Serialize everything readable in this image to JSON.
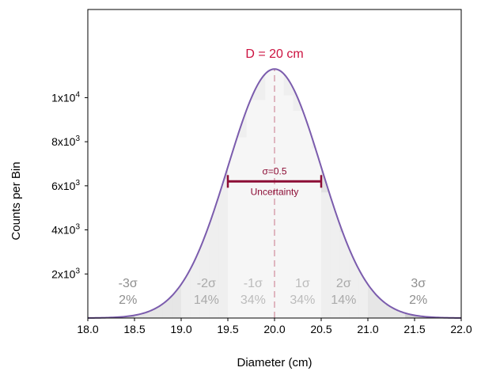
{
  "chart_data": {
    "type": "bar",
    "xlabel": "Diameter (cm)",
    "ylabel": "Counts per Bin",
    "xlim": [
      18.0,
      22.0
    ],
    "ylim": [
      0,
      14000
    ],
    "x_ticks": [
      "18.0",
      "18.5",
      "19.0",
      "19.5",
      "20.0",
      "20.5",
      "21.0",
      "21.5",
      "22.0"
    ],
    "y_ticks": [
      {
        "value": 2000,
        "base": "2x10",
        "exp": "3"
      },
      {
        "value": 4000,
        "base": "4x10",
        "exp": "3"
      },
      {
        "value": 6000,
        "base": "6x10",
        "exp": "3"
      },
      {
        "value": 8000,
        "base": "8x10",
        "exp": "3"
      },
      {
        "value": 10000,
        "base": "1x10",
        "exp": "4"
      }
    ],
    "histogram": {
      "bin_width": 0.1,
      "bins": [
        {
          "x": 18.55,
          "y": 300
        },
        {
          "x": 18.65,
          "y": 550
        },
        {
          "x": 18.75,
          "y": 600
        },
        {
          "x": 18.85,
          "y": 1050
        },
        {
          "x": 18.95,
          "y": 1780
        },
        {
          "x": 19.05,
          "y": 2950
        },
        {
          "x": 19.15,
          "y": 4700
        },
        {
          "x": 19.25,
          "y": 4700
        },
        {
          "x": 19.35,
          "y": 6300
        },
        {
          "x": 19.45,
          "y": 6300
        },
        {
          "x": 19.55,
          "y": 8200
        },
        {
          "x": 19.65,
          "y": 8200
        },
        {
          "x": 19.75,
          "y": 9900
        },
        {
          "x": 19.85,
          "y": 9900
        },
        {
          "x": 19.95,
          "y": 11300
        },
        {
          "x": 20.05,
          "y": 11300
        },
        {
          "x": 20.15,
          "y": 10100
        },
        {
          "x": 20.25,
          "y": 9400
        },
        {
          "x": 20.35,
          "y": 9400
        },
        {
          "x": 20.45,
          "y": 7700
        },
        {
          "x": 20.55,
          "y": 5700
        },
        {
          "x": 20.65,
          "y": 5700
        },
        {
          "x": 20.75,
          "y": 3900
        },
        {
          "x": 20.85,
          "y": 3900
        },
        {
          "x": 20.95,
          "y": 2300
        },
        {
          "x": 21.05,
          "y": 2300
        },
        {
          "x": 21.15,
          "y": 1400
        },
        {
          "x": 21.25,
          "y": 550
        },
        {
          "x": 21.35,
          "y": 350
        }
      ]
    },
    "curve": {
      "mean": 20.0,
      "sigma": 0.5,
      "peak": 11300,
      "color": "#7b5cad"
    },
    "shading_colors": {
      "inner": "#efefef",
      "middle": "#e2e2e2",
      "outer": "#d2d2d2"
    },
    "mean_line": {
      "x": 20.0,
      "color": "#c8758a"
    },
    "title_annotation": {
      "text": "D = 20 cm",
      "color": "#cc1240"
    },
    "uncertainty": {
      "x_start": 19.5,
      "x_end": 20.5,
      "y": 6200,
      "top_text": "σ=0.5",
      "bottom_text": "Uncertainty",
      "color": "#8c0d35"
    },
    "bands": [
      {
        "sigma": "-3σ",
        "pct": "2%",
        "x": 18.43,
        "color": "#8f8f8f"
      },
      {
        "sigma": "-2σ",
        "pct": "14%",
        "x": 19.27,
        "color": "#aaaaaa"
      },
      {
        "sigma": "-1σ",
        "pct": "34%",
        "x": 19.77,
        "color": "#bcbcbc"
      },
      {
        "sigma": "1σ",
        "pct": "34%",
        "x": 20.3,
        "color": "#bcbcbc"
      },
      {
        "sigma": "2σ",
        "pct": "14%",
        "x": 20.74,
        "color": "#aaaaaa"
      },
      {
        "sigma": "3σ",
        "pct": "2%",
        "x": 21.54,
        "color": "#8f8f8f"
      }
    ]
  }
}
